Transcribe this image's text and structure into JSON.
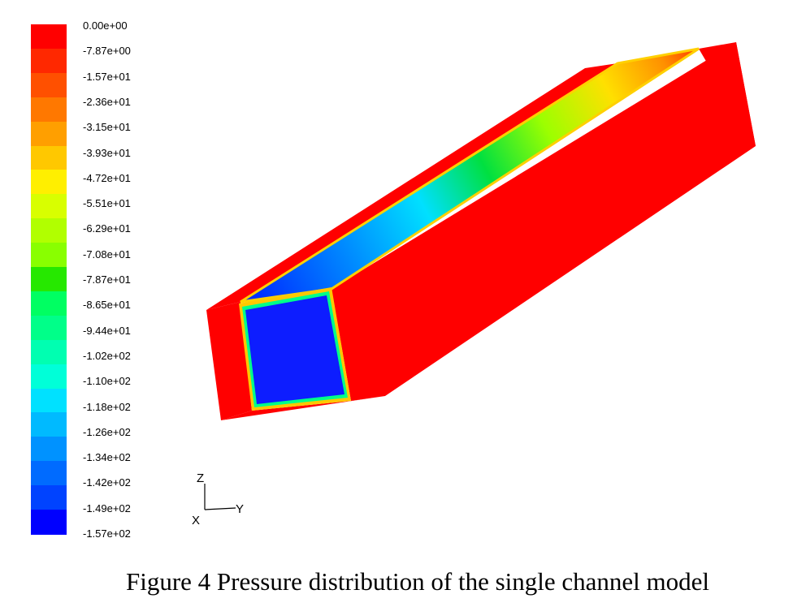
{
  "legend": {
    "labels": [
      "0.00e+00",
      "-7.87e+00",
      "-1.57e+01",
      "-2.36e+01",
      "-3.15e+01",
      "-3.93e+01",
      "-4.72e+01",
      "-5.51e+01",
      "-6.29e+01",
      "-7.08e+01",
      "-7.87e+01",
      "-8.65e+01",
      "-9.44e+01",
      "-1.02e+02",
      "-1.10e+02",
      "-1.18e+02",
      "-1.26e+02",
      "-1.34e+02",
      "-1.42e+02",
      "-1.49e+02",
      "-1.57e+02"
    ],
    "colors": [
      "#ff0000",
      "#ff2800",
      "#ff5000",
      "#ff7800",
      "#ff9f00",
      "#ffc800",
      "#ffef00",
      "#d8ff00",
      "#b1ff00",
      "#89ff00",
      "#26e800",
      "#00ff62",
      "#00ff89",
      "#00ffb1",
      "#00ffd8",
      "#00e1ff",
      "#00baff",
      "#0092ff",
      "#006bff",
      "#0043ff",
      "#0000ff"
    ]
  },
  "axes": {
    "z": "Z",
    "y": "Y",
    "x": "X"
  },
  "caption": "Figure 4 Pressure distribution of the single channel model"
}
